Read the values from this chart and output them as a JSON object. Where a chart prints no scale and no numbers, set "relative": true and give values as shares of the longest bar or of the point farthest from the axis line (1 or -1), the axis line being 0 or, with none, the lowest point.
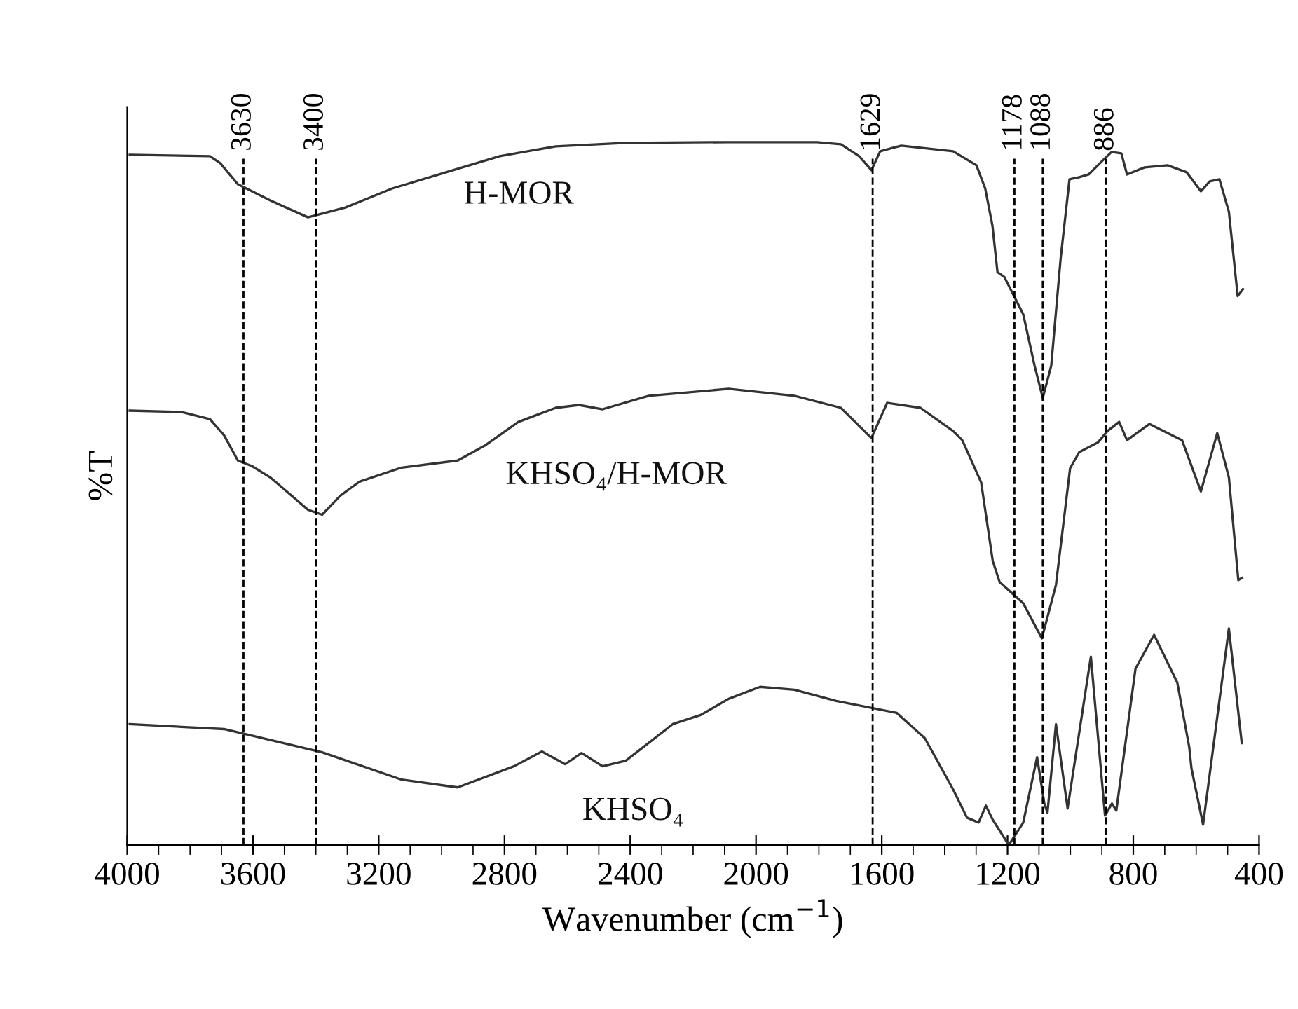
{
  "chart_data": {
    "type": "line",
    "relative": true,
    "xlabel": "Wavenumber (cm$^{−1}$)",
    "ylabel": "%T",
    "xlim": [
      4000,
      400
    ],
    "xticks": [
      4000,
      3600,
      3200,
      2800,
      2400,
      2000,
      1600,
      1200,
      800,
      400
    ],
    "line_style": "solid",
    "marker": "none",
    "grid": false,
    "legend": false,
    "ref_lines": [
      {
        "axis": "x",
        "value": 3630,
        "label": "3630",
        "line_style": "dashed",
        "color": "#000000"
      },
      {
        "axis": "x",
        "value": 3400,
        "label": "3400",
        "line_style": "dashed",
        "color": "#000000"
      },
      {
        "axis": "x",
        "value": 1629,
        "label": "1629",
        "line_style": "dashed",
        "color": "#000000"
      },
      {
        "axis": "x",
        "value": 1178,
        "label": "1178",
        "line_style": "dashed",
        "color": "#000000"
      },
      {
        "axis": "x",
        "value": 1088,
        "label": "1088",
        "line_style": "dashed",
        "color": "#000000"
      },
      {
        "axis": "x",
        "value": 886,
        "label": "886",
        "line_style": "dashed",
        "color": "#000000"
      }
    ],
    "series": [
      {
        "name": "H-MOR",
        "color": "#333333",
        "x": [
          3992,
          3737,
          3704,
          3648,
          3603,
          3545,
          3425,
          3306,
          3157,
          2934,
          2904,
          2815,
          2637,
          2414,
          2087,
          1806,
          1730,
          1672,
          1633,
          1605,
          1538,
          1373,
          1299,
          1271,
          1248,
          1232,
          1210,
          1150,
          1114,
          1088,
          1061,
          1031,
          1003,
          972,
          942,
          897,
          869,
          838,
          820,
          764,
          691,
          630,
          585,
          557,
          526,
          496,
          468,
          451
        ],
        "values": [
          0.982,
          0.98,
          0.97,
          0.94,
          0.93,
          0.917,
          0.893,
          0.907,
          0.934,
          0.964,
          0.968,
          0.98,
          0.994,
          0.999,
          1.0,
          1.0,
          0.997,
          0.98,
          0.96,
          0.987,
          0.995,
          0.987,
          0.967,
          0.934,
          0.881,
          0.815,
          0.808,
          0.755,
          0.682,
          0.636,
          0.682,
          0.835,
          0.947,
          0.95,
          0.954,
          0.974,
          0.986,
          0.984,
          0.954,
          0.964,
          0.967,
          0.957,
          0.93,
          0.944,
          0.947,
          0.901,
          0.781,
          0.791
        ]
      },
      {
        "name": "KHSO₄/H-MOR",
        "color": "#333333",
        "x": [
          3992,
          3826,
          3737,
          3692,
          3648,
          3603,
          3545,
          3425,
          3380,
          3322,
          3261,
          3127,
          2949,
          2860,
          2756,
          2637,
          2563,
          2488,
          2341,
          2087,
          1878,
          1730,
          1633,
          1583,
          1477,
          1373,
          1344,
          1284,
          1247,
          1225,
          1150,
          1091,
          1046,
          1001,
          972,
          912,
          882,
          845,
          820,
          749,
          645,
          585,
          533,
          496,
          466,
          454
        ],
        "values": [
          0.618,
          0.616,
          0.606,
          0.583,
          0.547,
          0.539,
          0.523,
          0.477,
          0.47,
          0.497,
          0.517,
          0.537,
          0.547,
          0.569,
          0.602,
          0.622,
          0.626,
          0.62,
          0.639,
          0.649,
          0.639,
          0.622,
          0.579,
          0.629,
          0.622,
          0.589,
          0.576,
          0.516,
          0.404,
          0.374,
          0.344,
          0.294,
          0.37,
          0.536,
          0.559,
          0.573,
          0.589,
          0.602,
          0.576,
          0.599,
          0.576,
          0.503,
          0.586,
          0.523,
          0.377,
          0.38
        ]
      },
      {
        "name": "KHSO₄",
        "color": "#333333",
        "x": [
          3992,
          3692,
          3380,
          3127,
          2949,
          2770,
          2681,
          2607,
          2555,
          2488,
          2414,
          2265,
          2176,
          2087,
          1987,
          1878,
          1745,
          1552,
          1463,
          1373,
          1329,
          1292,
          1269,
          1247,
          1196,
          1150,
          1106,
          1083,
          1073,
          1046,
          1009,
          935,
          890,
          868,
          854,
          793,
          734,
          660,
          622,
          615,
          578,
          496,
          455
        ],
        "values": [
          0.172,
          0.165,
          0.132,
          0.093,
          0.082,
          0.112,
          0.133,
          0.115,
          0.131,
          0.112,
          0.12,
          0.172,
          0.185,
          0.208,
          0.225,
          0.221,
          0.205,
          0.188,
          0.152,
          0.079,
          0.039,
          0.032,
          0.056,
          0.036,
          0.0,
          0.032,
          0.125,
          0.059,
          0.046,
          0.172,
          0.052,
          0.268,
          0.042,
          0.059,
          0.049,
          0.251,
          0.299,
          0.231,
          0.139,
          0.109,
          0.029,
          0.308,
          0.145
        ]
      }
    ]
  }
}
